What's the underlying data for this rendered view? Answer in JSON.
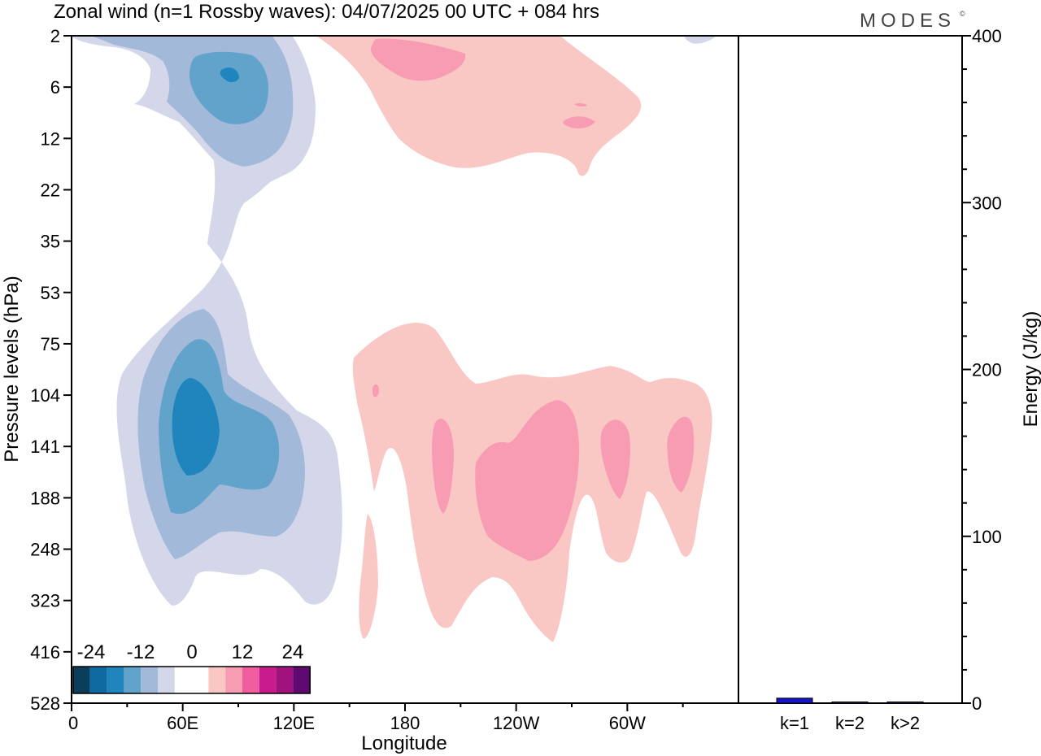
{
  "title": "Zonal wind (n=1 Rossby waves):  04/07/2025  00 UTC  + 084 hrs",
  "logo": "MODES",
  "logo_mark": "©",
  "colors": {
    "neg": [
      "#0b3e5a",
      "#0e6aa1",
      "#1f85bc",
      "#62a3cc",
      "#a2b9da",
      "#d4d6e9"
    ],
    "zero": "#ffffff",
    "pos": [
      "#f9c8c5",
      "#f89cb3",
      "#ef5f9f",
      "#c81c8c",
      "#a0137e",
      "#5e0a70"
    ],
    "bar_k1": "#1515c8",
    "bar_small": "#303070",
    "frame": "#000000"
  },
  "chart_data": [
    {
      "type": "heatmap",
      "title": "Zonal wind (n=1 Rossby waves):  04/07/2025  00 UTC  + 084 hrs",
      "xlabel": "Longitude",
      "ylabel": "Pressure levels (hPa)",
      "x_ticks": [
        "0",
        "60E",
        "120E",
        "180",
        "120W",
        "60W"
      ],
      "x_tick_values": [
        0,
        60,
        120,
        180,
        240,
        300
      ],
      "xlim": [
        0,
        360
      ],
      "y_ticks": [
        "2",
        "6",
        "12",
        "22",
        "35",
        "53",
        "75",
        "104",
        "141",
        "188",
        "248",
        "323",
        "416",
        "528"
      ],
      "colorbar": {
        "labels": [
          "-24",
          "-12",
          "0",
          "12",
          "24"
        ],
        "values": [
          -24,
          -12,
          0,
          12,
          24
        ],
        "levels": [
          -30,
          -25,
          -20,
          -15,
          -10,
          -5,
          0,
          5,
          10,
          15,
          20,
          25,
          30
        ]
      },
      "contours": [
        {
          "level": -5,
          "center": [
            60,
            141
          ],
          "note": "lower-left negative lobe"
        },
        {
          "level": -20,
          "center": [
            64,
            141
          ]
        },
        {
          "level": -5,
          "center": [
            80,
            6
          ],
          "note": "upper negative lobe"
        },
        {
          "level": -20,
          "center": [
            82,
            5
          ]
        },
        {
          "level": 5,
          "center": [
            250,
            141
          ],
          "note": "lower positive lobe"
        },
        {
          "level": 10,
          "center": [
            243,
            160
          ]
        },
        {
          "level": 5,
          "center": [
            250,
            9
          ],
          "note": "upper positive lobe"
        },
        {
          "level": 10,
          "center": [
            210,
            4
          ]
        }
      ]
    },
    {
      "type": "bar",
      "categories": [
        "k=1",
        "k=2",
        "k>2"
      ],
      "values": [
        3,
        0.5,
        0.5
      ],
      "ylabel": "Energy (J/kg)",
      "ylim": [
        0,
        400
      ],
      "y_ticks": [
        "0",
        "100",
        "200",
        "300",
        "400"
      ],
      "y_tick_values": [
        0,
        100,
        200,
        300,
        400
      ]
    }
  ]
}
